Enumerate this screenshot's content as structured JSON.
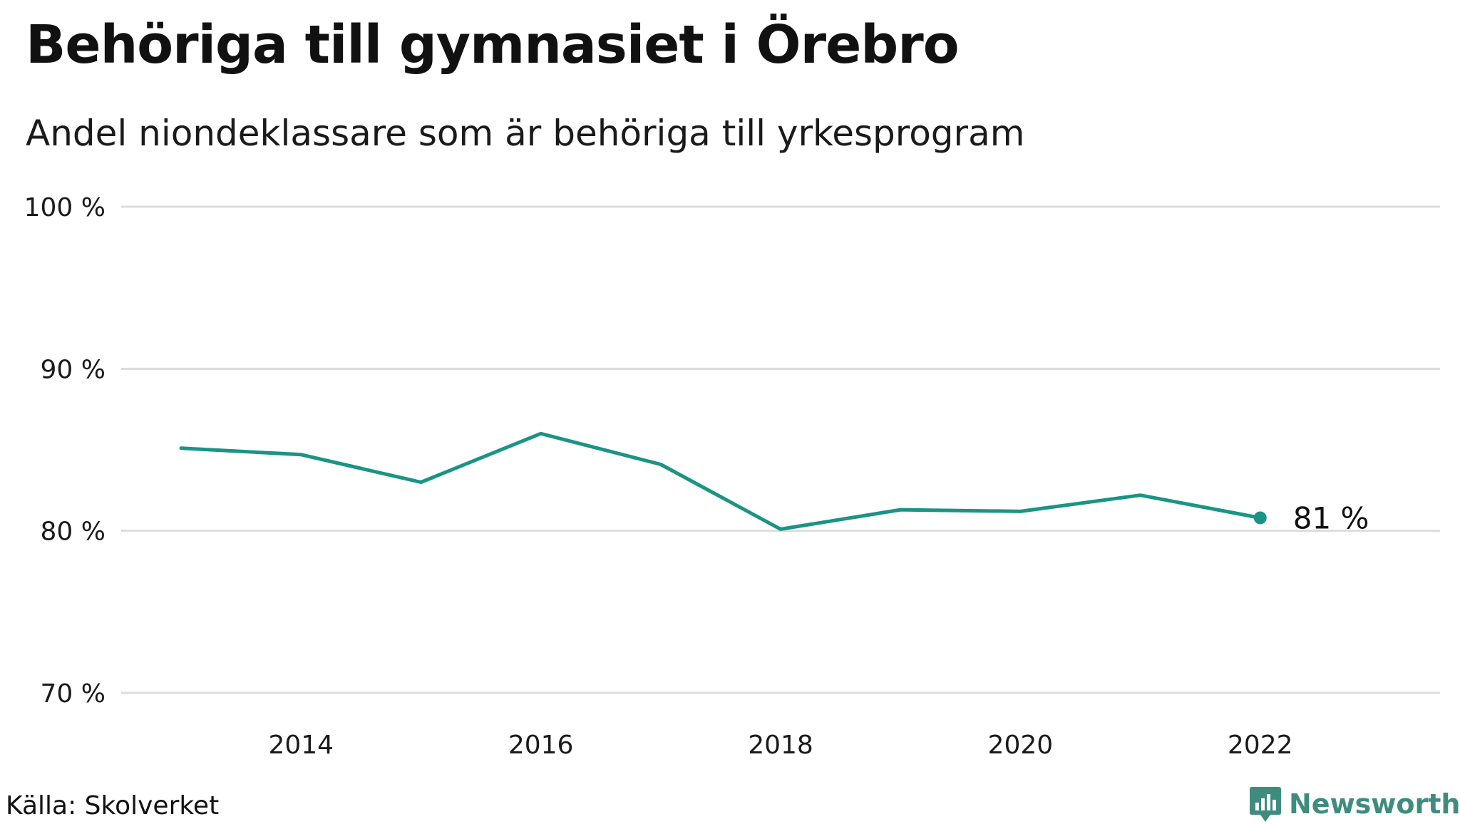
{
  "header": {
    "title": "Behöriga till gymnasiet i Örebro",
    "subtitle": "Andel niondeklassare som är behöriga till yrkesprogram"
  },
  "footer": {
    "source": "Källa: Skolverket",
    "brand": "Newsworthy",
    "brand_icon": "bar-chart-icon"
  },
  "colors": {
    "line": "#1a9484",
    "grid": "#dcdcdc",
    "brand": "#3f8c7f"
  },
  "chart_data": {
    "type": "line",
    "x": [
      2013,
      2014,
      2015,
      2016,
      2017,
      2018,
      2019,
      2020,
      2021,
      2022
    ],
    "series": [
      {
        "values": [
          85.1,
          84.7,
          83.0,
          86.0,
          84.1,
          80.1,
          81.3,
          81.2,
          82.2,
          80.8
        ]
      }
    ],
    "end_label": "81  %",
    "xlim": [
      2012.5,
      2023.5
    ],
    "ylim": [
      70,
      100
    ],
    "x_ticks": [
      2014,
      2016,
      2018,
      2020,
      2022
    ],
    "x_tick_labels": [
      "2014",
      "2016",
      "2018",
      "2020",
      "2022"
    ],
    "y_ticks": [
      70,
      80,
      90,
      100
    ],
    "y_tick_labels": [
      "70 %",
      "80 %",
      "90 %",
      "100 %"
    ],
    "grid": "horizontal"
  }
}
